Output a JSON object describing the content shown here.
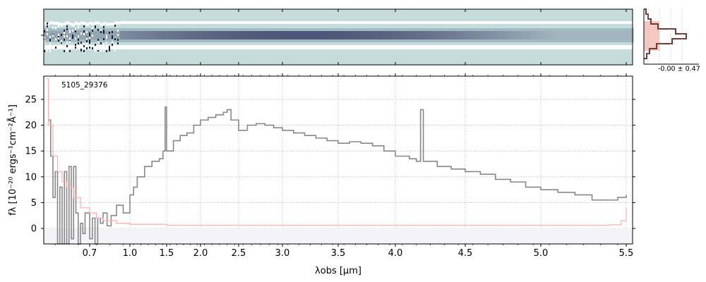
{
  "chart_data": [
    {
      "type": "heatmap",
      "panel": "2d-spectrum",
      "description_note": "",
      "colors": {
        "background": "#c5dcdb",
        "trace": "#3a3f66",
        "low": "#ffffff"
      }
    },
    {
      "type": "histogram",
      "panel": "pixel-distribution",
      "annotation": "-0.00 ± 0.47",
      "colors": {
        "hist": "#6b3d35",
        "fill": "#f6c9c0"
      }
    },
    {
      "type": "line",
      "panel": "1d-spectrum",
      "title": "",
      "object_label": "5105_29376",
      "xlabel": "λobs [μm]",
      "ylabel": "fλ [10⁻²⁰ ergs⁻¹cm⁻²Å⁻¹]",
      "x_ticks": [
        0.7,
        1.0,
        1.5,
        2.0,
        2.5,
        3.0,
        3.5,
        4.0,
        4.5,
        5.0,
        5.5
      ],
      "x_tick_labels": [
        "0.7",
        "1.0",
        "1.5",
        "2.0",
        "2.5",
        "3.0",
        "3.5",
        "4.0",
        "4.5",
        "5.0",
        "5.5"
      ],
      "y_ticks": [
        0,
        5,
        10,
        15,
        20,
        25
      ],
      "y_tick_labels": [
        "0",
        "5",
        "10",
        "15",
        "20",
        "25"
      ],
      "ylim": [
        -3,
        29.5
      ],
      "grid": true,
      "series": [
        {
          "role": "flux",
          "color": "#888888",
          "points": [
            [
              0.52,
              21
            ],
            [
              0.53,
              14
            ],
            [
              0.54,
              6
            ],
            [
              0.55,
              11
            ],
            [
              0.56,
              -3
            ],
            [
              0.57,
              8
            ],
            [
              0.58,
              -3
            ],
            [
              0.59,
              11
            ],
            [
              0.6,
              -3
            ],
            [
              0.61,
              12
            ],
            [
              0.62,
              -2
            ],
            [
              0.63,
              12
            ],
            [
              0.64,
              3
            ],
            [
              0.65,
              -3
            ],
            [
              0.66,
              1
            ],
            [
              0.67,
              -1
            ],
            [
              0.68,
              3
            ],
            [
              0.7,
              -2
            ],
            [
              0.72,
              2
            ],
            [
              0.74,
              -3
            ],
            [
              0.76,
              2
            ],
            [
              0.78,
              1
            ],
            [
              0.8,
              3
            ],
            [
              0.83,
              0.5
            ],
            [
              0.86,
              2.5
            ],
            [
              0.9,
              4.5
            ],
            [
              0.95,
              3
            ],
            [
              1.0,
              6.5
            ],
            [
              1.05,
              8
            ],
            [
              1.1,
              10
            ],
            [
              1.2,
              12
            ],
            [
              1.3,
              13
            ],
            [
              1.4,
              13.5
            ],
            [
              1.45,
              15
            ],
            [
              1.48,
              23.5
            ],
            [
              1.5,
              15
            ],
            [
              1.6,
              17
            ],
            [
              1.7,
              18
            ],
            [
              1.8,
              18.5
            ],
            [
              1.9,
              20
            ],
            [
              2.0,
              21
            ],
            [
              2.1,
              21.5
            ],
            [
              2.2,
              22
            ],
            [
              2.3,
              22.5
            ],
            [
              2.35,
              23
            ],
            [
              2.4,
              21
            ],
            [
              2.5,
              19
            ],
            [
              2.6,
              20
            ],
            [
              2.7,
              20.3
            ],
            [
              2.8,
              20
            ],
            [
              2.9,
              19.5
            ],
            [
              3.0,
              19
            ],
            [
              3.1,
              18.5
            ],
            [
              3.2,
              18
            ],
            [
              3.3,
              17.5
            ],
            [
              3.4,
              17
            ],
            [
              3.5,
              16.5
            ],
            [
              3.6,
              16.8
            ],
            [
              3.7,
              16.5
            ],
            [
              3.8,
              16
            ],
            [
              3.9,
              15
            ],
            [
              4.0,
              14
            ],
            [
              4.1,
              13.5
            ],
            [
              4.15,
              13
            ],
            [
              4.18,
              23
            ],
            [
              4.2,
              13
            ],
            [
              4.3,
              12
            ],
            [
              4.4,
              11.5
            ],
            [
              4.5,
              11
            ],
            [
              4.6,
              10.5
            ],
            [
              4.7,
              9.5
            ],
            [
              4.8,
              9
            ],
            [
              4.9,
              8
            ],
            [
              5.0,
              7.5
            ],
            [
              5.1,
              7
            ],
            [
              5.2,
              6.5
            ],
            [
              5.3,
              5.5
            ],
            [
              5.4,
              5.5
            ],
            [
              5.45,
              6
            ],
            [
              5.5,
              6.5
            ]
          ]
        },
        {
          "role": "error",
          "color": "#ffb0b0",
          "points": [
            [
              0.51,
              29
            ],
            [
              0.52,
              20
            ],
            [
              0.54,
              14
            ],
            [
              0.56,
              11
            ],
            [
              0.58,
              9
            ],
            [
              0.6,
              8
            ],
            [
              0.63,
              6
            ],
            [
              0.66,
              4
            ],
            [
              0.7,
              3
            ],
            [
              0.75,
              2
            ],
            [
              0.8,
              1.5
            ],
            [
              0.9,
              1
            ],
            [
              1.0,
              0.8
            ],
            [
              1.5,
              0.6
            ],
            [
              2.0,
              0.6
            ],
            [
              3.0,
              0.6
            ],
            [
              4.0,
              0.6
            ],
            [
              5.0,
              0.6
            ],
            [
              5.4,
              0.7
            ],
            [
              5.47,
              1.5
            ],
            [
              5.5,
              4
            ]
          ]
        }
      ]
    }
  ]
}
